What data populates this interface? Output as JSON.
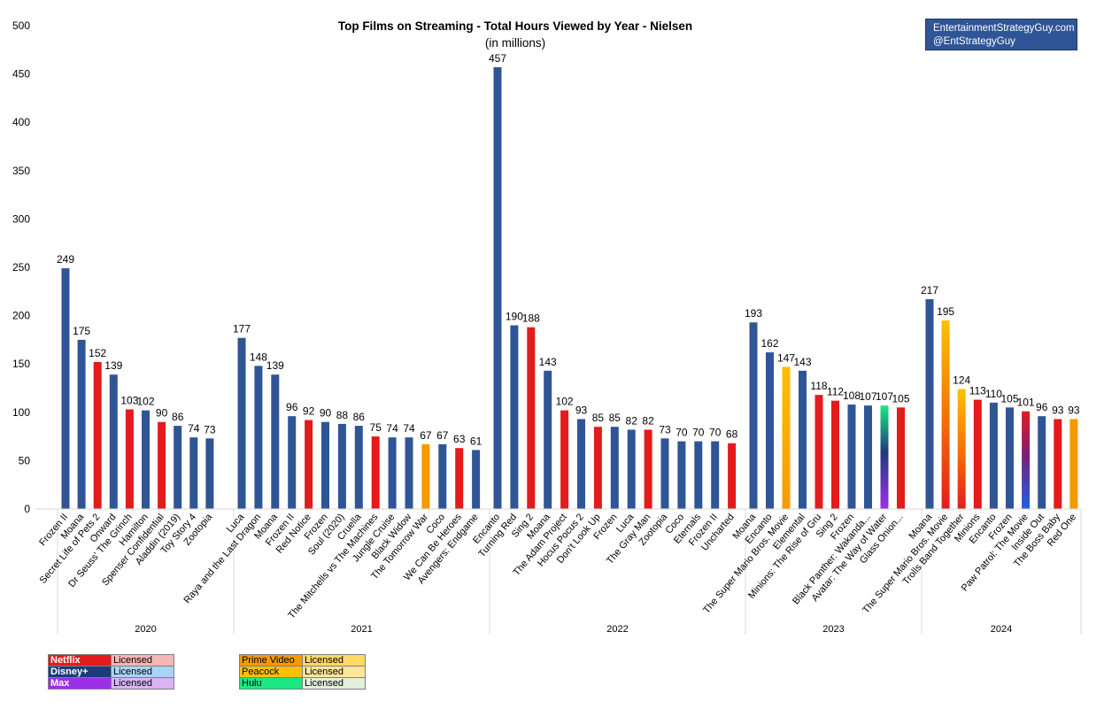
{
  "chart_data": {
    "type": "bar",
    "title": "Top Films on Streaming - Total Hours Viewed by Year - Nielsen",
    "subtitle": "(in millions)",
    "ylim": [
      0,
      500
    ],
    "yticks": [
      "0",
      "50",
      "100",
      "150",
      "200",
      "250",
      "300",
      "350",
      "400",
      "450",
      "500"
    ],
    "ytick_values": [
      0,
      50,
      100,
      150,
      200,
      250,
      300,
      350,
      400,
      450,
      500
    ],
    "groups": [
      {
        "year": "2020",
        "bars": [
          {
            "label": "Frozen II",
            "value": 249,
            "service": "Disney+"
          },
          {
            "label": "Moana",
            "value": 175,
            "service": "Disney+"
          },
          {
            "label": "Secret Life of Pets 2",
            "value": 152,
            "service": "Netflix"
          },
          {
            "label": "Onward",
            "value": 139,
            "service": "Disney+"
          },
          {
            "label": "Dr Seuss' The Grinch",
            "value": 103,
            "service": "Netflix"
          },
          {
            "label": "Hamilton",
            "value": 102,
            "service": "Disney+"
          },
          {
            "label": "Spenser Confidential",
            "value": 90,
            "service": "Netflix"
          },
          {
            "label": "Aladdin (2019)",
            "value": 86,
            "service": "Disney+"
          },
          {
            "label": "Toy Story 4",
            "value": 74,
            "service": "Disney+"
          },
          {
            "label": "Zootopia",
            "value": 73,
            "service": "Disney+"
          }
        ]
      },
      {
        "year": "2021",
        "bars": [
          {
            "label": "Luca",
            "value": 177,
            "service": "Disney+"
          },
          {
            "label": "Raya and the Last Dragon",
            "value": 148,
            "service": "Disney+"
          },
          {
            "label": "Moana",
            "value": 139,
            "service": "Disney+"
          },
          {
            "label": "Frozen II",
            "value": 96,
            "service": "Disney+"
          },
          {
            "label": "Red Notice",
            "value": 92,
            "service": "Netflix"
          },
          {
            "label": "Frozen",
            "value": 90,
            "service": "Disney+"
          },
          {
            "label": "Soul (2020)",
            "value": 88,
            "service": "Disney+"
          },
          {
            "label": "Cruella",
            "value": 86,
            "service": "Disney+"
          },
          {
            "label": "The Mitchells vs The Machines",
            "value": 75,
            "service": "Netflix"
          },
          {
            "label": "Jungle Cruise",
            "value": 74,
            "service": "Disney+"
          },
          {
            "label": "Black Widow",
            "value": 74,
            "service": "Disney+"
          },
          {
            "label": "The Tomorrow War",
            "value": 67,
            "service": "Prime Video"
          },
          {
            "label": "Coco",
            "value": 67,
            "service": "Disney+"
          },
          {
            "label": "We Can Be Heroes",
            "value": 63,
            "service": "Netflix"
          },
          {
            "label": "Avengers: Endgame",
            "value": 61,
            "service": "Disney+"
          }
        ]
      },
      {
        "year": "2022",
        "bars": [
          {
            "label": "Encanto",
            "value": 457,
            "service": "Disney+"
          },
          {
            "label": "Turning Red",
            "value": 190,
            "service": "Disney+"
          },
          {
            "label": "Sing 2",
            "value": 188,
            "service": "Netflix"
          },
          {
            "label": "Moana",
            "value": 143,
            "service": "Disney+"
          },
          {
            "label": "The Adam Project",
            "value": 102,
            "service": "Netflix"
          },
          {
            "label": "Hocus Pocus 2",
            "value": 93,
            "service": "Disney+"
          },
          {
            "label": "Don't Look Up",
            "value": 85,
            "service": "Netflix"
          },
          {
            "label": "Frozen",
            "value": 85,
            "service": "Disney+"
          },
          {
            "label": "Luca",
            "value": 82,
            "service": "Disney+"
          },
          {
            "label": "The Gray Man",
            "value": 82,
            "service": "Netflix"
          },
          {
            "label": "Zootopia",
            "value": 73,
            "service": "Disney+"
          },
          {
            "label": "Coco",
            "value": 70,
            "service": "Disney+"
          },
          {
            "label": "Eternals",
            "value": 70,
            "service": "Disney+"
          },
          {
            "label": "Frozen II",
            "value": 70,
            "service": "Disney+"
          },
          {
            "label": "Uncharted",
            "value": 68,
            "service": "Netflix"
          }
        ]
      },
      {
        "year": "2023",
        "bars": [
          {
            "label": "Moana",
            "value": 193,
            "service": "Disney+"
          },
          {
            "label": "Encanto",
            "value": 162,
            "service": "Disney+"
          },
          {
            "label": "The Super Mario Bros. Movie",
            "value": 147,
            "service": "Peacock"
          },
          {
            "label": "Elemental",
            "value": 143,
            "service": "Disney+"
          },
          {
            "label": "Minions: The Rise of Gru",
            "value": 118,
            "service": "Netflix"
          },
          {
            "label": "Sing 2",
            "value": 112,
            "service": "Netflix"
          },
          {
            "label": "Frozen",
            "value": 108,
            "service": "Disney+"
          },
          {
            "label": "Black Panther: Wakanda...",
            "value": 107,
            "service": "Disney+"
          },
          {
            "label": "Avatar: The Way of Water",
            "value": 107,
            "service": "Hulu/Max"
          },
          {
            "label": "Glass Onion...",
            "value": 105,
            "service": "Netflix"
          }
        ]
      },
      {
        "year": "2024",
        "bars": [
          {
            "label": "Moana",
            "value": 217,
            "service": "Disney+"
          },
          {
            "label": "The Super Mario Bros. Movie",
            "value": 195,
            "service": "Peacock/Netflix"
          },
          {
            "label": "Trolls Band Together",
            "value": 124,
            "service": "Peacock/Netflix"
          },
          {
            "label": "Minions",
            "value": 113,
            "service": "Netflix"
          },
          {
            "label": "Encanto",
            "value": 110,
            "service": "Disney+"
          },
          {
            "label": "Frozen",
            "value": 105,
            "service": "Disney+"
          },
          {
            "label": "Paw Patrol: The Movie",
            "value": 101,
            "service": "Netflix/Disney+"
          },
          {
            "label": "Inside Out",
            "value": 96,
            "service": "Disney+"
          },
          {
            "label": "The Boss Baby",
            "value": 93,
            "service": "Netflix"
          },
          {
            "label": "Red One",
            "value": 93,
            "service": "Prime Video"
          }
        ]
      }
    ]
  },
  "credit": {
    "line1": "EntertainmentStrategyGuy.com",
    "line2": "@EntStrategyGuy"
  },
  "legend": {
    "left": [
      {
        "service": "Netflix",
        "licensed": "Licensed"
      },
      {
        "service": "Disney+",
        "licensed": "Licensed"
      },
      {
        "service": "Max",
        "licensed": "Licensed"
      }
    ],
    "right": [
      {
        "service": "Prime Video",
        "licensed": "Licensed"
      },
      {
        "service": "Peacock",
        "licensed": "Licensed"
      },
      {
        "service": "Hulu",
        "licensed": "Licensed"
      }
    ]
  },
  "colors": {
    "Netflix": "#E31B1B",
    "Disney+": "#2F5597",
    "Disney+Dark": "#1F3A7A",
    "Max": "#9B30E8",
    "Prime Video": "#F59A00",
    "Peacock": "#FFC000",
    "Hulu": "#1CE783",
    "NetflixLicensed": "#F4B6B6",
    "DisneyLicensed": "#A9D4F5",
    "MaxLicensed": "#D8B4F5",
    "PrimeLicensed": "#FFD966",
    "PeacockLicensed": "#FFE699",
    "HuluLicensed": "#E2EFDA"
  }
}
